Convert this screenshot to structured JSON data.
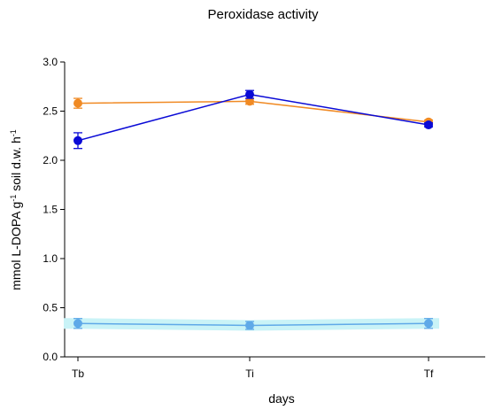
{
  "chart_data": {
    "type": "line",
    "title": "Peroxidase activity",
    "xlabel": "days",
    "ylabel": {
      "parts": [
        "mmol L-DOPA g",
        "-1",
        " soil d.w. h",
        "-1"
      ]
    },
    "categories": [
      "Tb",
      "Ti",
      "Tf"
    ],
    "ylim": [
      0.0,
      3.0
    ],
    "yticks": [
      "0.0",
      "0.5",
      "1.0",
      "1.5",
      "2.0",
      "2.5",
      "3.0"
    ],
    "grid": false,
    "legend": "none",
    "series": [
      {
        "color": "#f08a24",
        "values": [
          2.58,
          2.6,
          2.39
        ],
        "errors": [
          0.05,
          0.03,
          0.02
        ]
      },
      {
        "color": "#0a0ad6",
        "values": [
          2.2,
          2.67,
          2.36
        ],
        "errors": [
          0.08,
          0.04,
          0.02
        ]
      },
      {
        "color": "#5fa9e8",
        "band_color": "#c9f3f7",
        "values": [
          0.34,
          0.32,
          0.34
        ],
        "errors": [
          0.05,
          0.04,
          0.05
        ]
      }
    ]
  }
}
